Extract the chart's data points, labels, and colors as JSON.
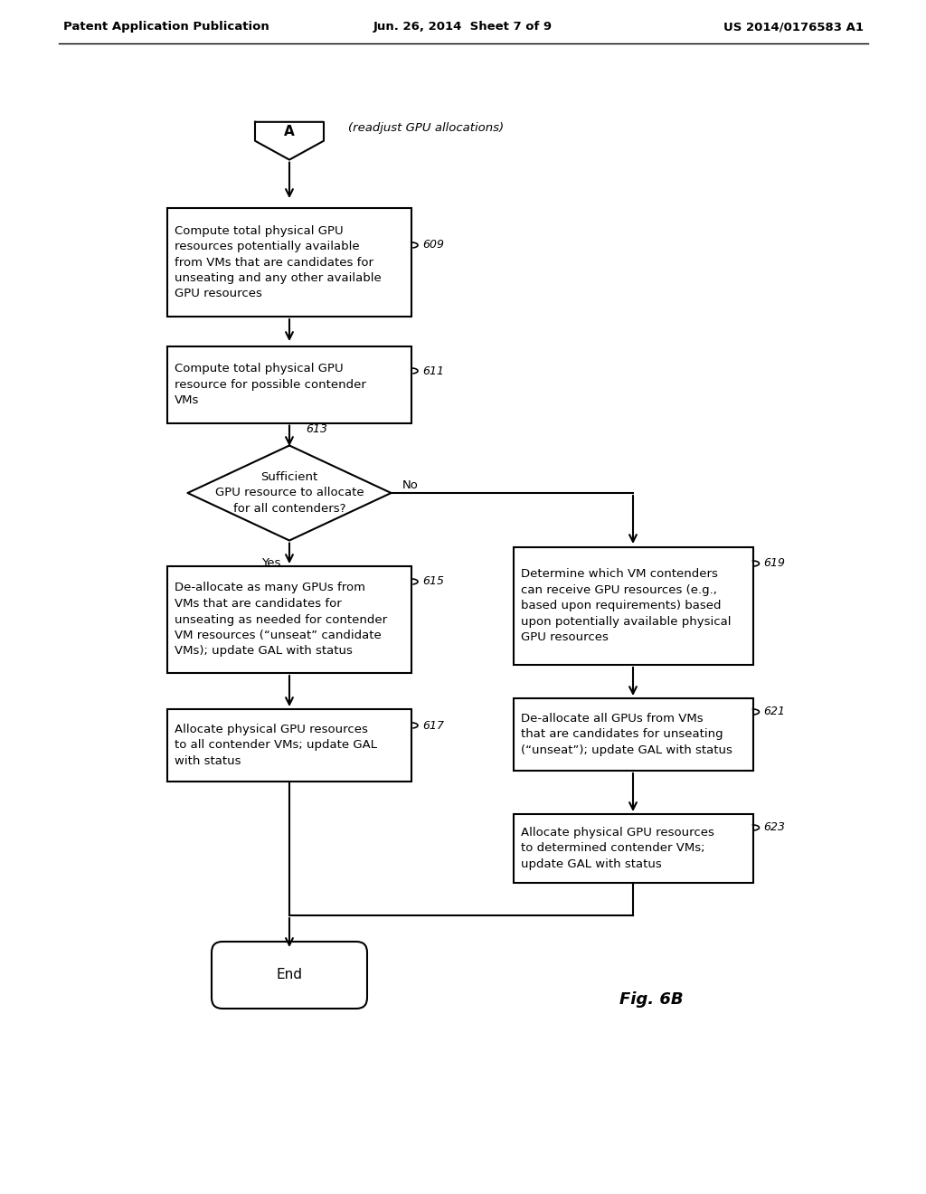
{
  "header_left": "Patent Application Publication",
  "header_center": "Jun. 26, 2014  Sheet 7 of 9",
  "header_right": "US 2014/0176583 A1",
  "fig_label": "Fig. 6B",
  "connector_label": "A",
  "connector_note": "(readjust GPU allocations)",
  "box609": "Compute total physical GPU\nresources potentially available\nfrom VMs that are candidates for\nunseating and any other available\nGPU resources",
  "box611": "Compute total physical GPU\nresource for possible contender\nVMs",
  "diamond613": "Sufficient\nGPU resource to allocate\nfor all contenders?",
  "box615": "De-allocate as many GPUs from\nVMs that are candidates for\nunseating as needed for contender\nVM resources (“unseat” candidate\nVMs); update GAL with status",
  "box617": "Allocate physical GPU resources\nto all contender VMs; update GAL\nwith status",
  "box619": "Determine which VM contenders\ncan receive GPU resources (e.g.,\nbased upon requirements) based\nupon potentially available physical\nGPU resources",
  "box621": "De-allocate all GPUs from VMs\nthat are candidates for unseating\n(“unseat”); update GAL with status",
  "box623": "Allocate physical GPU resources\nto determined contender VMs;\nupdate GAL with status",
  "end_label": "End",
  "bg": "#ffffff",
  "fg": "#000000",
  "lw": 1.5
}
